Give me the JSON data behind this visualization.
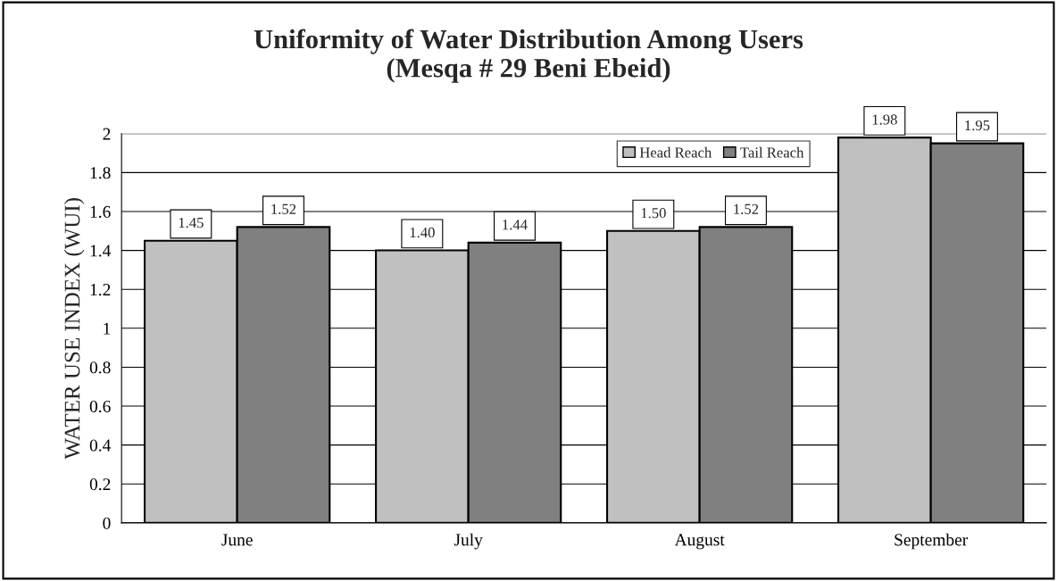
{
  "chart_data": {
    "type": "bar",
    "title": "Uniformity of Water Distribution Among Users\n(Mesqa # 29 Beni Ebeid)",
    "ylabel": "WATER USE INDEX (WUI)",
    "categories": [
      "June",
      "July",
      "August",
      "September"
    ],
    "series": [
      {
        "name": "Head Reach",
        "color": "#c0c0c0",
        "values": [
          1.45,
          1.4,
          1.5,
          1.98
        ],
        "value_labels": [
          "1.45",
          "1.40",
          "1.50",
          "1.98"
        ]
      },
      {
        "name": "Tail Reach",
        "color": "#808080",
        "values": [
          1.52,
          1.44,
          1.52,
          1.95
        ],
        "value_labels": [
          "1.52",
          "1.44",
          "1.52",
          "1.95"
        ]
      }
    ],
    "ylim": [
      0,
      2
    ],
    "yticks": [
      0,
      0.2,
      0.4,
      0.6,
      0.8,
      1,
      1.2,
      1.4,
      1.6,
      1.8,
      2
    ],
    "grid": "y",
    "legend": "top right"
  }
}
